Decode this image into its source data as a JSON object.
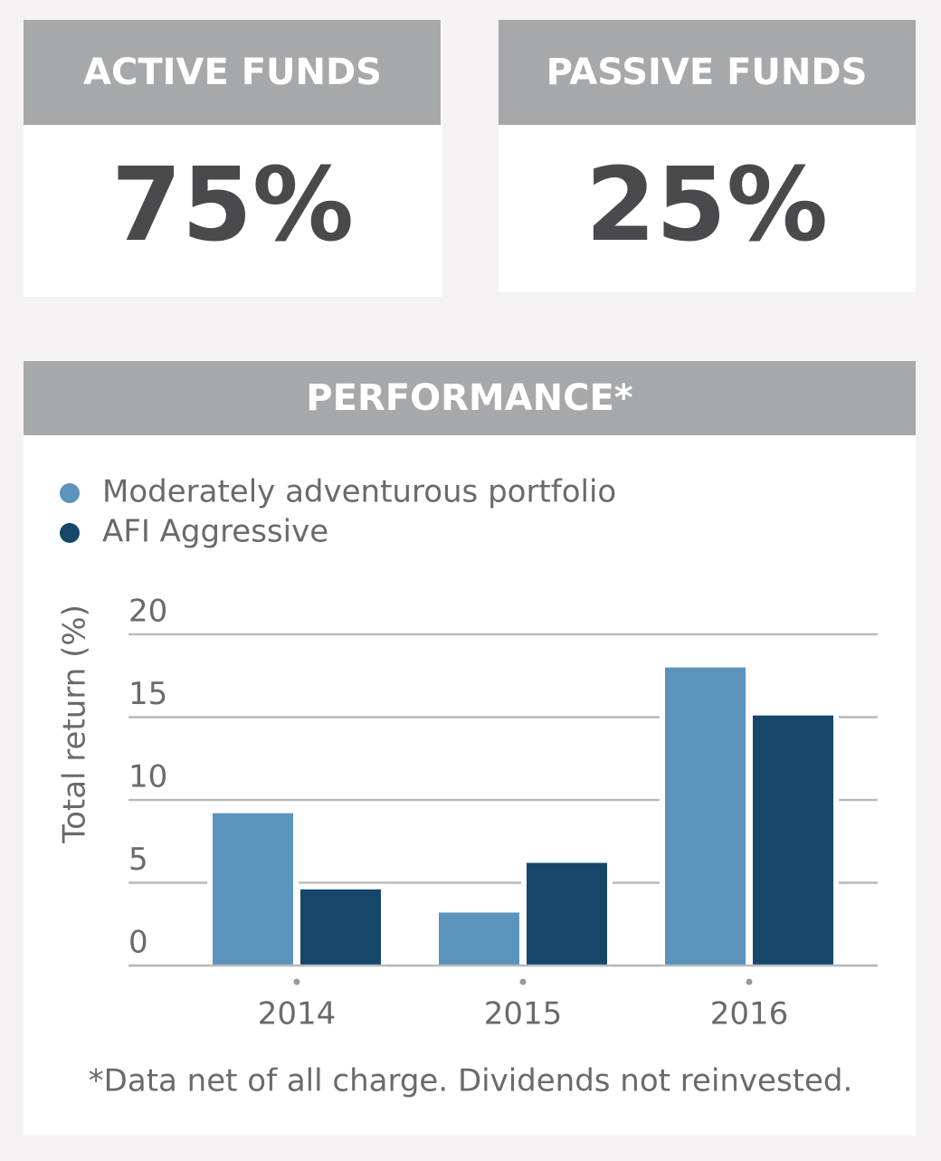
{
  "cards": [
    {
      "title": "ACTIVE FUNDS",
      "value": "75%"
    },
    {
      "title": "PASSIVE FUNDS",
      "value": "25%"
    }
  ],
  "chart_data": {
    "type": "bar",
    "title": "PERFORMANCE*",
    "categories": [
      "2014",
      "2015",
      "2016"
    ],
    "series": [
      {
        "name": "Moderately adventurous portfolio",
        "color": "#5b93bd",
        "values": [
          9.2,
          3.2,
          18.0
        ]
      },
      {
        "name": "AFI Aggressive",
        "color": "#15476b",
        "values": [
          4.6,
          6.2,
          15.1
        ]
      }
    ],
    "y_label": "Total return (%)",
    "ylim": [
      0,
      20
    ],
    "yticks": [
      0,
      5,
      10,
      15,
      20
    ],
    "grid": true,
    "legend": "top-left",
    "footnote": "*Data net of all charge. Dividends not reinvested."
  }
}
